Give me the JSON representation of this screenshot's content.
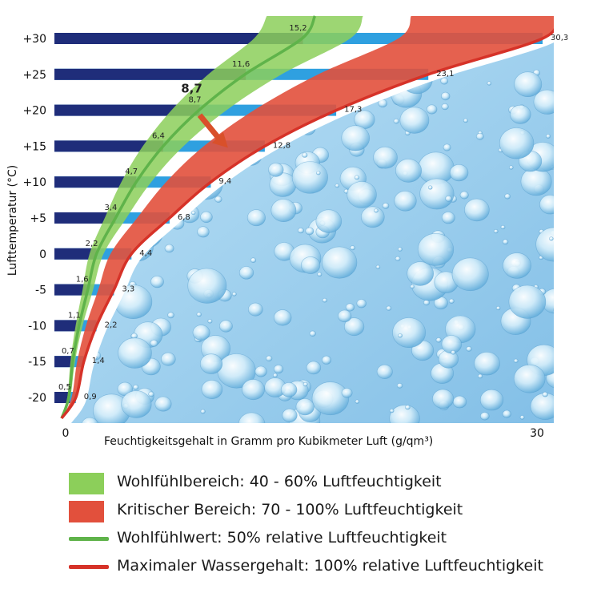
{
  "colors": {
    "bar_dark": "#1f2d7a",
    "bar_light": "#2fa0e0",
    "comfort_band": "#8ccf5a",
    "critical_band": "#e2503c",
    "comfort_line": "#5fb34a",
    "max_line": "#d63228",
    "water_bg": "#a9d6ef",
    "arrow": "#d9502a"
  },
  "chart_data": {
    "type": "bar",
    "orientation": "horizontal",
    "title": "",
    "ylabel": "Lufttemperatur (°C)",
    "xlabel": "Feuchtigkeitsgehalt in Gramm pro Kubikmeter Luft (g/qm³)",
    "categories": [
      "-20",
      "-15",
      "-10",
      "-5",
      "0",
      "+5",
      "+10",
      "+15",
      "+20",
      "+25",
      "+30"
    ],
    "xlim": [
      0,
      30
    ],
    "x_tick_labels": [
      "0",
      "30"
    ],
    "series": [
      {
        "values": [
          0.9,
          1.4,
          2.2,
          3.3,
          4.4,
          6.8,
          9.4,
          12.8,
          17.3,
          23.1,
          30.3
        ],
        "labels": [
          "0,9",
          "1,4",
          "2,2",
          "3,3",
          "4,4",
          "6,8",
          "9,4",
          "12,8",
          "17,3",
          "23,1",
          "30,3"
        ]
      },
      {
        "values": [
          0.5,
          0.7,
          1.1,
          1.6,
          2.2,
          3.4,
          4.7,
          6.4,
          8.7,
          11.6,
          15.2
        ],
        "labels": [
          "0,5",
          "0,7",
          "1,1",
          "1,6",
          "2,2",
          "3,4",
          "4,7",
          "6,4",
          "8,7",
          "11,6",
          "15,2"
        ]
      }
    ],
    "comfort_band_rh": [
      0.4,
      0.6
    ],
    "critical_band_rh": [
      0.7,
      1.0
    ],
    "callout": {
      "label": "8,7",
      "temperature": 20
    }
  },
  "legend": [
    {
      "kind": "swatch",
      "color": "#8ccf5a",
      "label": "Wohlfühlbereich: 40 - 60% Luftfeuchtigkeit"
    },
    {
      "kind": "swatch",
      "color": "#e2503c",
      "label": "Kritischer Bereich: 70 - 100% Luftfeuchtigkeit"
    },
    {
      "kind": "line",
      "color": "#5fb34a",
      "label": "Wohlfühlwert: 50% relative Luftfeuchtigkeit"
    },
    {
      "kind": "line",
      "color": "#d63228",
      "label": "Maximaler Wassergehalt: 100% relative Luftfeuchtigkeit"
    }
  ]
}
